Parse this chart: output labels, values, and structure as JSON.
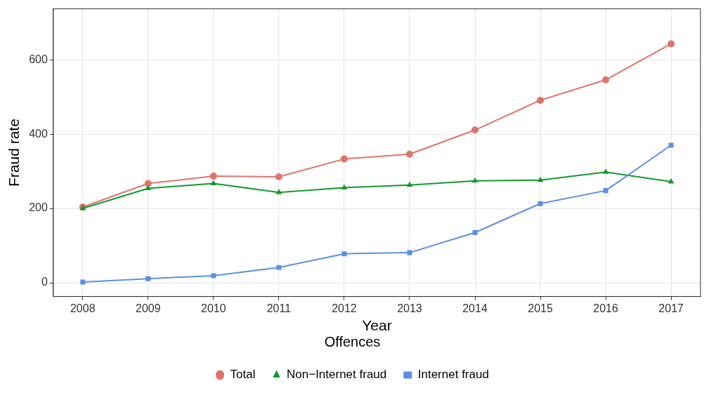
{
  "chart_data": {
    "type": "line",
    "xlabel": "Year",
    "ylabel": "Fraud rate",
    "legend_title": "Offences",
    "legend": "bottom",
    "grid": true,
    "x": [
      2008,
      2009,
      2010,
      2011,
      2012,
      2013,
      2014,
      2015,
      2016,
      2017
    ],
    "xlim": [
      2007.55,
      2017.45
    ],
    "xticks": [
      2008,
      2009,
      2010,
      2011,
      2012,
      2013,
      2014,
      2015,
      2016,
      2017
    ],
    "ylim": [
      -37,
      737
    ],
    "yticks": [
      0,
      200,
      400,
      600
    ],
    "series": [
      {
        "name": "Total",
        "color": "#e0736a",
        "marker": "circle",
        "values": [
          204,
          267,
          287,
          285,
          333,
          346,
          411,
          491,
          546,
          643
        ]
      },
      {
        "name": "Non−Internet fraud",
        "color": "#129a2f",
        "marker": "triangle",
        "values": [
          200,
          254,
          267,
          243,
          256,
          263,
          274,
          276,
          298,
          272
        ]
      },
      {
        "name": "Internet fraud",
        "color": "#5b8fe3",
        "marker": "square",
        "values": [
          2,
          11,
          19,
          41,
          78,
          81,
          135,
          213,
          248,
          370
        ]
      }
    ]
  }
}
